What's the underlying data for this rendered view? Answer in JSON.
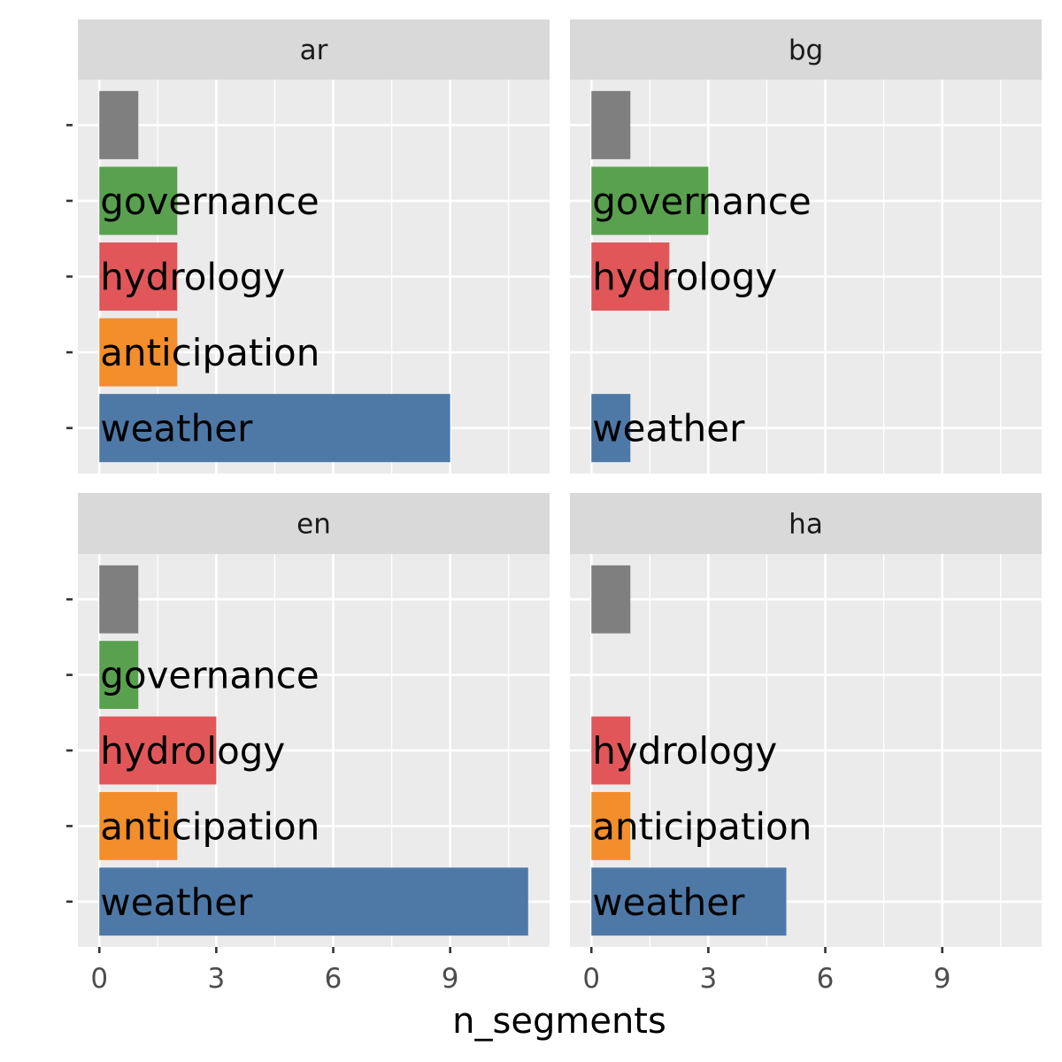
{
  "chart_data": {
    "type": "bar",
    "orientation": "horizontal",
    "facets": [
      "ar",
      "bg",
      "en",
      "ha"
    ],
    "categories": [
      "",
      "governance",
      "hydrology",
      "anticipation",
      "weather"
    ],
    "category_colors": [
      "#7f7f7f",
      "#59a14f",
      "#e15759",
      "#f28e2b",
      "#4e79a7"
    ],
    "panels": [
      {
        "facet": "ar",
        "values": [
          1,
          2,
          2,
          2,
          9
        ]
      },
      {
        "facet": "bg",
        "values": [
          1,
          3,
          2,
          0,
          1
        ]
      },
      {
        "facet": "en",
        "values": [
          1,
          1,
          3,
          2,
          11
        ]
      },
      {
        "facet": "ha",
        "values": [
          1,
          0,
          1,
          1,
          5
        ]
      }
    ],
    "x_ticks": [
      "0",
      "3",
      "6",
      "9"
    ],
    "xlim": [
      -0.55,
      11.55
    ],
    "xlabel": "n_segments",
    "ylabel": "",
    "grid": true,
    "legend": "none"
  }
}
